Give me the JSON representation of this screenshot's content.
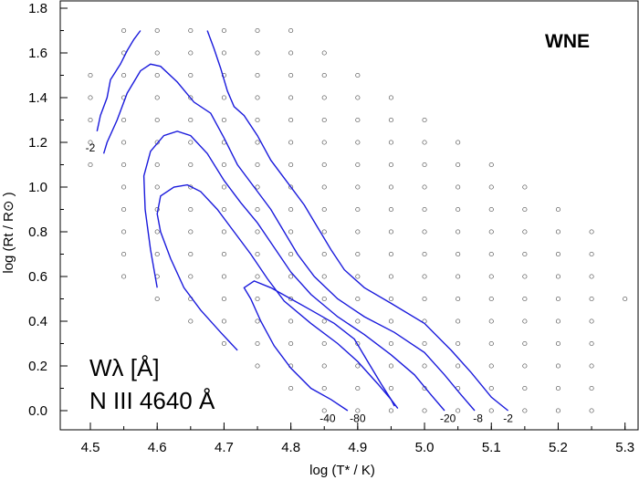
{
  "chart_data": {
    "type": "line",
    "corner_label": "WNE",
    "annotation_line1": "Wλ [Å]",
    "annotation_line2": "N III 4640 Å",
    "xlabel": "log (T* / K)",
    "ylabel": "log (Rt / R⊙ )",
    "xlim": [
      4.45,
      5.31
    ],
    "ylim": [
      -0.05,
      1.8
    ],
    "x_ticks": [
      "4.5",
      "4.6",
      "4.7",
      "4.8",
      "4.9",
      "5.0",
      "5.1",
      "5.2",
      "5.3"
    ],
    "x_tick_values": [
      4.5,
      4.6,
      4.7,
      4.8,
      4.9,
      5.0,
      5.1,
      5.2,
      5.3
    ],
    "y_ticks": [
      "0.0",
      "0.2",
      "0.4",
      "0.6",
      "0.8",
      "1.0",
      "1.2",
      "1.4",
      "1.6",
      "1.8"
    ],
    "y_tick_values": [
      0.0,
      0.2,
      0.4,
      0.6,
      0.8,
      1.0,
      1.2,
      1.4,
      1.6,
      1.8
    ],
    "grid": false,
    "colors": {
      "contour": "#1a1adc",
      "points": "#555555"
    },
    "model_grid": {
      "x_columns": [
        4.5,
        4.55,
        4.6,
        4.65,
        4.7,
        4.75,
        4.8,
        4.85,
        4.9,
        4.95,
        5.0,
        5.05,
        5.1,
        5.15,
        5.2,
        5.25,
        5.3
      ],
      "columns": [
        {
          "x": 4.5,
          "y_min": 1.1,
          "y_max": 1.5
        },
        {
          "x": 4.55,
          "y_min": 0.6,
          "y_max": 1.7
        },
        {
          "x": 4.6,
          "y_min": 0.5,
          "y_max": 1.7
        },
        {
          "x": 4.65,
          "y_min": 0.4,
          "y_max": 1.7
        },
        {
          "x": 4.7,
          "y_min": 0.3,
          "y_max": 1.7
        },
        {
          "x": 4.75,
          "y_min": 0.2,
          "y_max": 1.7
        },
        {
          "x": 4.8,
          "y_min": 0.1,
          "y_max": 1.7
        },
        {
          "x": 4.85,
          "y_min": 0.0,
          "y_max": 1.6
        },
        {
          "x": 4.9,
          "y_min": 0.0,
          "y_max": 1.5
        },
        {
          "x": 4.95,
          "y_min": 0.0,
          "y_max": 1.4
        },
        {
          "x": 5.0,
          "y_min": 0.0,
          "y_max": 1.3
        },
        {
          "x": 5.05,
          "y_min": 0.0,
          "y_max": 1.2
        },
        {
          "x": 5.1,
          "y_min": 0.0,
          "y_max": 1.1
        },
        {
          "x": 5.15,
          "y_min": 0.0,
          "y_max": 1.0
        },
        {
          "x": 5.2,
          "y_min": 0.0,
          "y_max": 0.9
        },
        {
          "x": 5.25,
          "y_min": 0.0,
          "y_max": 0.8
        },
        {
          "x": 5.3,
          "y_min": 0.5,
          "y_max": 0.5
        }
      ],
      "step": 0.1
    },
    "series": [
      {
        "label": "-2",
        "label_pos": [
          4.5,
          1.2
        ],
        "label_end": [
          5.125,
          -0.01
        ],
        "points": [
          [
            4.51,
            1.25
          ],
          [
            4.515,
            1.32
          ],
          [
            4.525,
            1.4
          ],
          [
            4.53,
            1.48
          ],
          [
            4.545,
            1.55
          ],
          [
            4.555,
            1.61
          ],
          [
            4.565,
            1.66
          ],
          [
            4.575,
            1.7
          ]
        ]
      },
      {
        "label": "-2",
        "label_pos": [
          5.125,
          -0.01
        ],
        "points": [
          [
            4.675,
            1.7
          ],
          [
            4.685,
            1.62
          ],
          [
            4.695,
            1.53
          ],
          [
            4.705,
            1.43
          ],
          [
            4.715,
            1.36
          ],
          [
            4.73,
            1.32
          ],
          [
            4.75,
            1.23
          ],
          [
            4.77,
            1.12
          ],
          [
            4.795,
            1.02
          ],
          [
            4.82,
            0.92
          ],
          [
            4.84,
            0.82
          ],
          [
            4.86,
            0.72
          ],
          [
            4.88,
            0.63
          ],
          [
            4.91,
            0.55
          ],
          [
            4.95,
            0.48
          ],
          [
            5.0,
            0.39
          ],
          [
            5.04,
            0.27
          ],
          [
            5.07,
            0.17
          ],
          [
            5.1,
            0.06
          ],
          [
            5.125,
            0.0
          ]
        ]
      },
      {
        "label": "-8",
        "label_pos": [
          5.08,
          -0.01
        ],
        "points": [
          [
            4.52,
            1.15
          ],
          [
            4.525,
            1.2
          ],
          [
            4.54,
            1.3
          ],
          [
            4.555,
            1.42
          ],
          [
            4.575,
            1.52
          ],
          [
            4.59,
            1.55
          ],
          [
            4.605,
            1.54
          ],
          [
            4.63,
            1.47
          ],
          [
            4.655,
            1.38
          ],
          [
            4.68,
            1.33
          ],
          [
            4.7,
            1.22
          ],
          [
            4.72,
            1.1
          ],
          [
            4.745,
            1.0
          ],
          [
            4.77,
            0.9
          ],
          [
            4.79,
            0.8
          ],
          [
            4.81,
            0.7
          ],
          [
            4.835,
            0.6
          ],
          [
            4.87,
            0.5
          ],
          [
            4.91,
            0.42
          ],
          [
            4.955,
            0.35
          ],
          [
            5.0,
            0.26
          ],
          [
            5.03,
            0.16
          ],
          [
            5.055,
            0.07
          ],
          [
            5.075,
            0.0
          ]
        ]
      },
      {
        "label": "-20",
        "label_pos": [
          5.035,
          -0.01
        ],
        "points": [
          [
            4.6,
            0.55
          ],
          [
            4.59,
            0.72
          ],
          [
            4.582,
            0.9
          ],
          [
            4.58,
            1.05
          ],
          [
            4.59,
            1.16
          ],
          [
            4.61,
            1.23
          ],
          [
            4.63,
            1.25
          ],
          [
            4.65,
            1.23
          ],
          [
            4.675,
            1.15
          ],
          [
            4.7,
            1.03
          ],
          [
            4.725,
            0.93
          ],
          [
            4.75,
            0.84
          ],
          [
            4.775,
            0.73
          ],
          [
            4.8,
            0.62
          ],
          [
            4.83,
            0.52
          ],
          [
            4.87,
            0.42
          ],
          [
            4.91,
            0.34
          ],
          [
            4.95,
            0.25
          ],
          [
            4.985,
            0.16
          ],
          [
            5.01,
            0.07
          ],
          [
            5.03,
            0.0
          ]
        ]
      },
      {
        "label": "-40",
        "label_pos": [
          4.855,
          -0.01
        ],
        "points": [
          [
            4.72,
            0.27
          ],
          [
            4.695,
            0.35
          ],
          [
            4.665,
            0.45
          ],
          [
            4.64,
            0.55
          ],
          [
            4.62,
            0.68
          ],
          [
            4.605,
            0.8
          ],
          [
            4.6,
            0.88
          ],
          [
            4.605,
            0.96
          ],
          [
            4.625,
            1.0
          ],
          [
            4.645,
            1.01
          ],
          [
            4.665,
            0.98
          ],
          [
            4.69,
            0.9
          ],
          [
            4.715,
            0.8
          ],
          [
            4.74,
            0.7
          ],
          [
            4.765,
            0.59
          ],
          [
            4.79,
            0.49
          ],
          [
            4.83,
            0.39
          ],
          [
            4.87,
            0.3
          ],
          [
            4.9,
            0.22
          ],
          [
            4.93,
            0.12
          ],
          [
            4.95,
            0.05
          ],
          [
            4.955,
            0.02
          ]
        ]
      },
      {
        "label": "-80",
        "label_pos": [
          4.9,
          -0.01
        ],
        "points": [
          [
            4.885,
            0.0
          ],
          [
            4.86,
            0.05
          ],
          [
            4.83,
            0.1
          ],
          [
            4.8,
            0.19
          ],
          [
            4.775,
            0.29
          ],
          [
            4.755,
            0.4
          ],
          [
            4.74,
            0.5
          ],
          [
            4.73,
            0.55
          ],
          [
            4.745,
            0.58
          ],
          [
            4.77,
            0.55
          ],
          [
            4.8,
            0.5
          ],
          [
            4.83,
            0.45
          ],
          [
            4.865,
            0.39
          ],
          [
            4.895,
            0.32
          ],
          [
            4.915,
            0.22
          ],
          [
            4.935,
            0.12
          ],
          [
            4.95,
            0.05
          ],
          [
            4.96,
            0.01
          ]
        ]
      }
    ]
  }
}
